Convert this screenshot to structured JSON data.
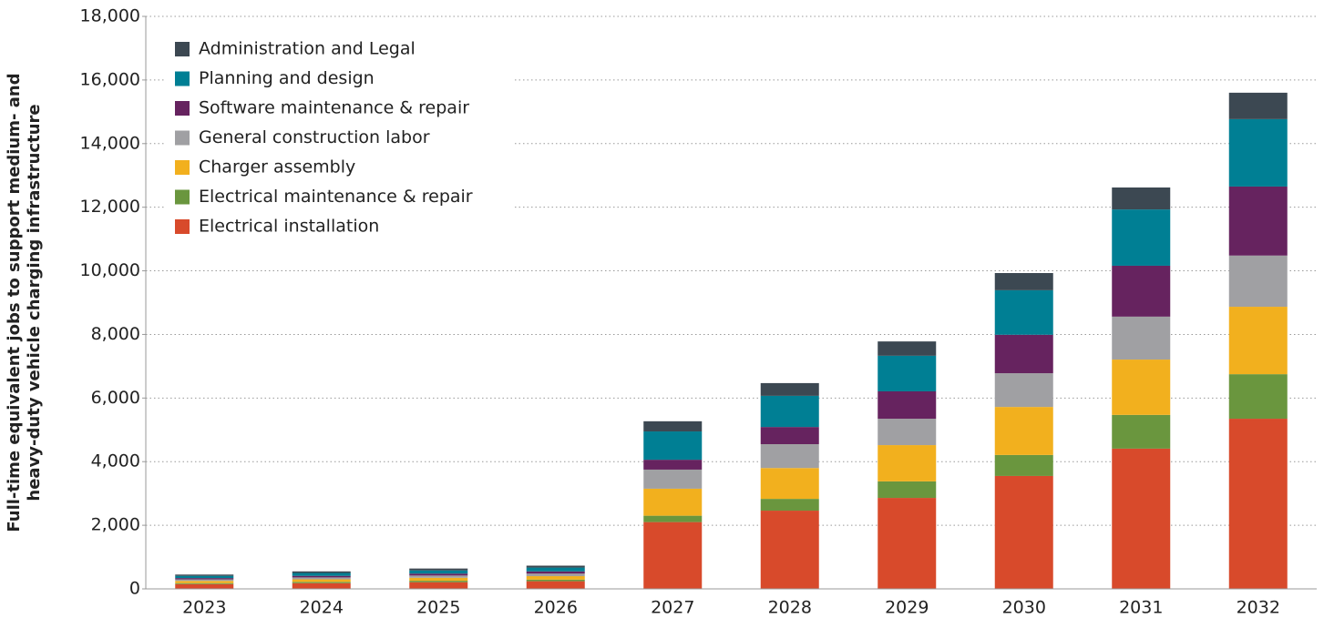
{
  "chart_data": {
    "type": "stacked_bar",
    "ylabel": [
      "Full-time equivalent jobs to support medium- and",
      "heavy-duty vehicle charging infrastructure"
    ],
    "categories": [
      "2023",
      "2024",
      "2025",
      "2026",
      "2027",
      "2028",
      "2029",
      "2030",
      "2031",
      "2032"
    ],
    "series": [
      {
        "name": "Electrical installation",
        "color": "#d84a2b",
        "values": [
          150,
          180,
          210,
          240,
          2100,
          2460,
          2860,
          3550,
          4410,
          5350
        ]
      },
      {
        "name": "Electrical maintenance & repair",
        "color": "#6a963e",
        "values": [
          30,
          40,
          45,
          50,
          200,
          370,
          520,
          660,
          1060,
          1400
        ]
      },
      {
        "name": "Charger assembly",
        "color": "#f2b01e",
        "values": [
          70,
          80,
          95,
          110,
          850,
          970,
          1140,
          1510,
          1740,
          2120
        ]
      },
      {
        "name": "General construction labor",
        "color": "#a0a0a3",
        "values": [
          50,
          60,
          70,
          80,
          600,
          750,
          830,
          1060,
          1350,
          1610
        ]
      },
      {
        "name": "Software maintenance & repair",
        "color": "#66235f",
        "values": [
          40,
          50,
          60,
          70,
          310,
          540,
          860,
          1210,
          1600,
          2170
        ]
      },
      {
        "name": "Planning and design",
        "color": "#007f94",
        "values": [
          70,
          90,
          100,
          120,
          890,
          980,
          1120,
          1400,
          1770,
          2120
        ]
      },
      {
        "name": "Administration and Legal",
        "color": "#3c4852",
        "values": [
          40,
          50,
          60,
          60,
          320,
          400,
          450,
          540,
          690,
          830
        ]
      }
    ],
    "ylim": [
      0,
      18000
    ],
    "yticks": [
      0,
      {
        "value": 2000,
        "label": "2,000"
      },
      {
        "value": 4000,
        "label": "4,000"
      },
      {
        "value": 6000,
        "label": "6,000"
      },
      {
        "value": 8000,
        "label": "8,000"
      },
      {
        "value": 10000,
        "label": "10,000"
      },
      {
        "value": 12000,
        "label": "12,000"
      },
      {
        "value": 14000,
        "label": "14,000"
      },
      {
        "value": 16000,
        "label": "16,000"
      },
      {
        "value": 18000,
        "label": "18,000"
      }
    ],
    "grid": true,
    "legend": "upper left"
  }
}
